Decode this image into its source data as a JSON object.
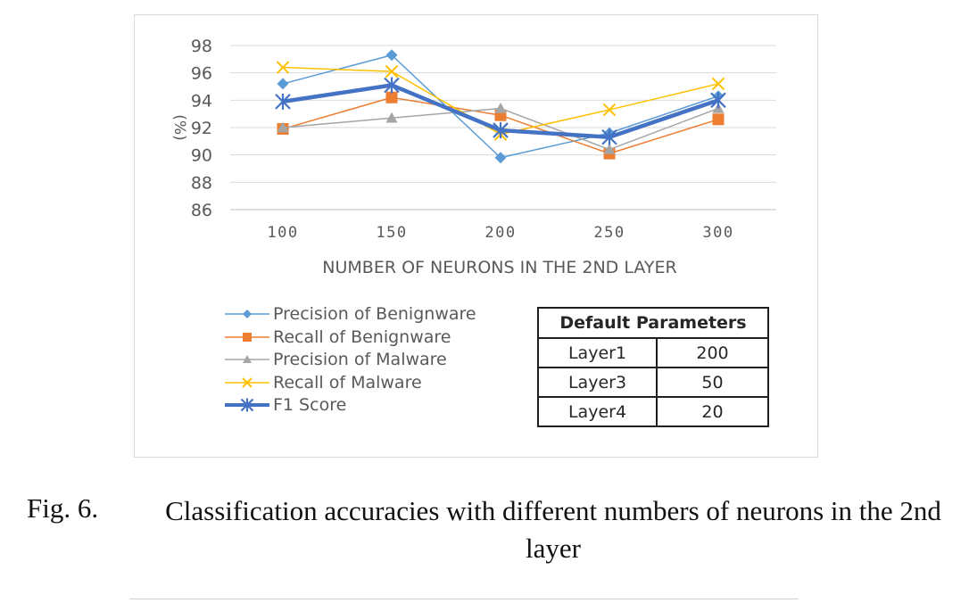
{
  "chart_data": {
    "type": "line",
    "x": [
      "100",
      "150",
      "200",
      "250",
      "300"
    ],
    "xlabel": "NUMBER OF NEURONS IN THE 2ND LAYER",
    "ylabel": "(%)",
    "ylim": [
      86,
      98
    ],
    "yticks": [
      86,
      88,
      90,
      92,
      94,
      96,
      98
    ],
    "grid": true,
    "legend_position": "bottom-left",
    "series": [
      {
        "name": "Precision of Benignware",
        "values": [
          95.2,
          97.3,
          89.8,
          91.6,
          94.3
        ],
        "color": "#5b9bd5",
        "marker": "diamond",
        "width": 1.5
      },
      {
        "name": "Recall of Benignware",
        "values": [
          91.9,
          94.2,
          92.9,
          90.1,
          92.6
        ],
        "color": "#ed7d31",
        "marker": "square",
        "width": 1.5
      },
      {
        "name": "Precision of Malware",
        "values": [
          92.0,
          92.7,
          93.4,
          90.4,
          93.4
        ],
        "color": "#a5a5a5",
        "marker": "triangle",
        "width": 1.5
      },
      {
        "name": "Recall of Malware",
        "values": [
          96.4,
          96.1,
          91.5,
          93.3,
          95.2
        ],
        "color": "#ffc000",
        "marker": "x",
        "width": 1.5
      },
      {
        "name": "F1 Score",
        "values": [
          93.9,
          95.1,
          91.8,
          91.3,
          94.0
        ],
        "color": "#4472c4",
        "marker": "asterisk",
        "width": 4.5
      }
    ]
  },
  "params_table": {
    "header": "Default Parameters",
    "rows": [
      {
        "name": "Layer1",
        "value": "200"
      },
      {
        "name": "Layer3",
        "value": "50"
      },
      {
        "name": "Layer4",
        "value": "20"
      }
    ]
  },
  "caption": {
    "label": "Fig. 6.",
    "text": "Classification accuracies with different numbers of neurons in the 2nd layer"
  }
}
